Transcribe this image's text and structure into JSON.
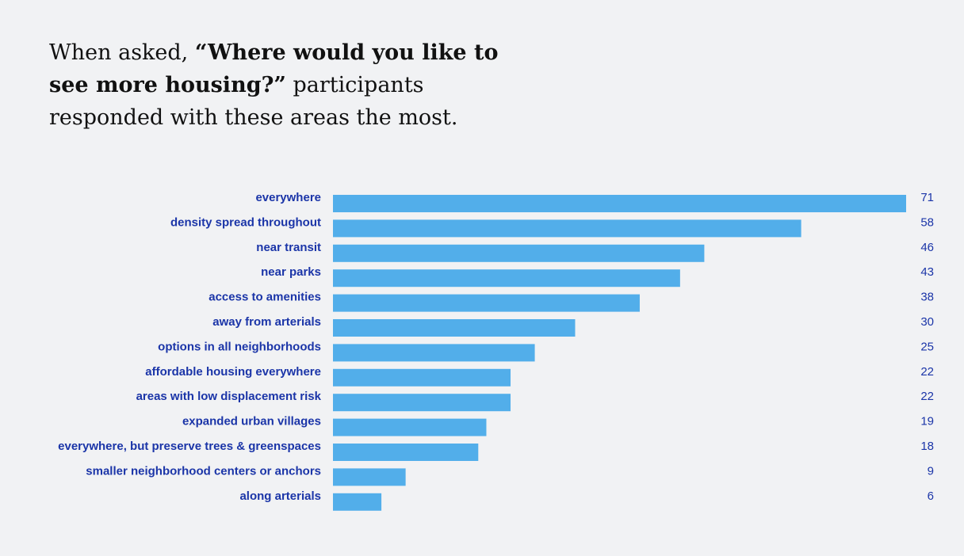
{
  "headline": {
    "part1": "When asked, ",
    "bold": "“Where would you like to see more housing?”",
    "part2": " participants responded with these areas the most."
  },
  "colors": {
    "background": "#f1f2f4",
    "bar": "#52aeea",
    "label": "#1b35a8",
    "headline": "#111111"
  },
  "chart_data": {
    "type": "bar",
    "orientation": "horizontal",
    "title": "",
    "xlabel": "",
    "ylabel": "",
    "xlim": [
      0,
      71
    ],
    "grid": false,
    "legend": "none",
    "categories": [
      "everywhere",
      "density spread throughout",
      "near transit",
      "near parks",
      "access to amenities",
      "away from arterials",
      "options in all neighborhoods",
      "affordable housing everywhere",
      "areas with low displacement risk",
      "expanded urban villages",
      "everywhere, but preserve trees & greenspaces",
      "smaller neighborhood centers or anchors",
      "along arterials"
    ],
    "values": [
      71,
      58,
      46,
      43,
      38,
      30,
      25,
      22,
      22,
      19,
      18,
      9,
      6
    ]
  }
}
